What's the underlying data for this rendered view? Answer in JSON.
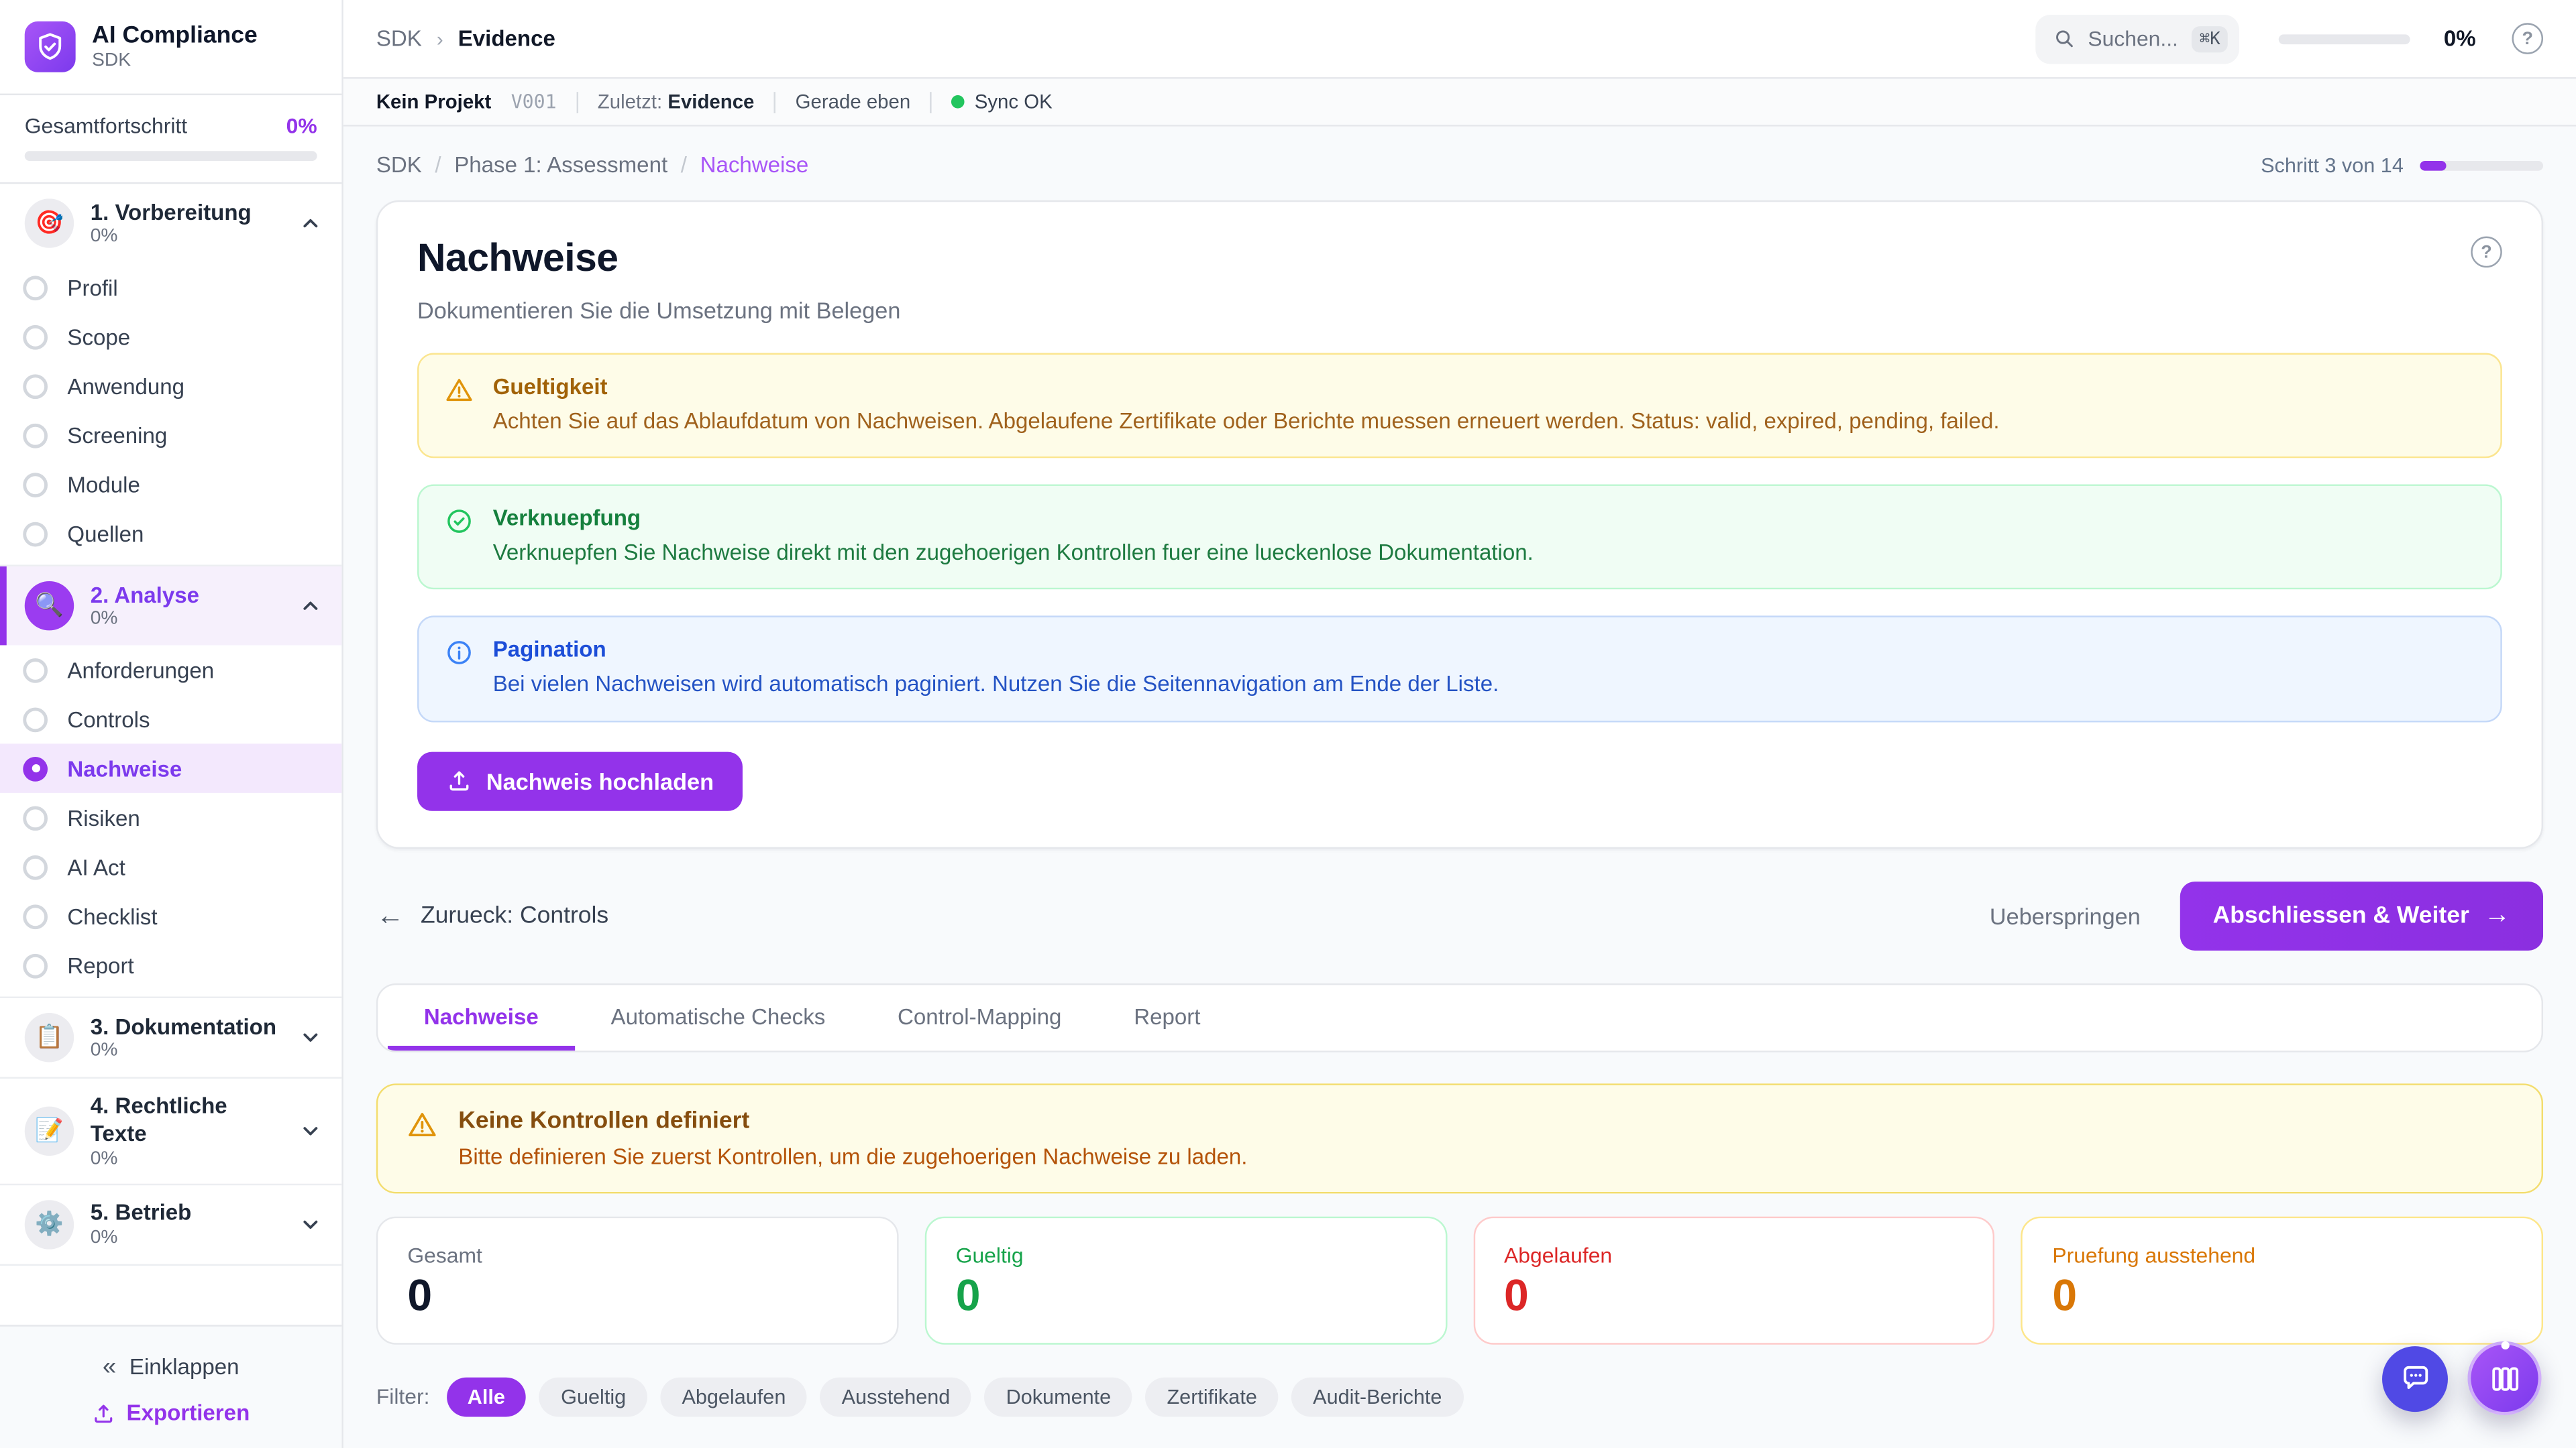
{
  "app": {
    "name": "AI Compliance",
    "subtitle": "SDK"
  },
  "sidebar": {
    "overall": {
      "label": "Gesamtfortschritt",
      "percent": "0%",
      "progress": 0
    },
    "sections": [
      {
        "title": "1. Vorbereitung",
        "percent": "0%",
        "icon": "🎯",
        "expanded": true,
        "active": false,
        "items": [
          {
            "label": "Profil"
          },
          {
            "label": "Scope"
          },
          {
            "label": "Anwendung"
          },
          {
            "label": "Screening"
          },
          {
            "label": "Module"
          },
          {
            "label": "Quellen"
          }
        ]
      },
      {
        "title": "2. Analyse",
        "percent": "0%",
        "icon": "🔍",
        "expanded": true,
        "active": true,
        "items": [
          {
            "label": "Anforderungen"
          },
          {
            "label": "Controls"
          },
          {
            "label": "Nachweise",
            "active": true
          },
          {
            "label": "Risiken"
          },
          {
            "label": "AI Act"
          },
          {
            "label": "Checklist"
          },
          {
            "label": "Report"
          }
        ]
      },
      {
        "title": "3. Dokumentation",
        "percent": "0%",
        "icon": "📋",
        "expanded": false,
        "active": false,
        "items": []
      },
      {
        "title": "4. Rechtliche Texte",
        "percent": "0%",
        "icon": "📝",
        "expanded": false,
        "active": false,
        "items": []
      },
      {
        "title": "5. Betrieb",
        "percent": "0%",
        "icon": "⚙️",
        "expanded": false,
        "active": false,
        "items": []
      }
    ],
    "collapse_label": "Einklappen",
    "export_label": "Exportieren"
  },
  "topbar": {
    "breadcrumb_root": "SDK",
    "breadcrumb_current": "Evidence",
    "search_placeholder": "Suchen...",
    "search_kbd": "⌘K",
    "progress_percent": "0%",
    "progress": 0
  },
  "statusbar": {
    "project": "Kein Projekt",
    "version": "V001",
    "last_label": "Zuletzt:",
    "last_value": "Evidence",
    "time": "Gerade eben",
    "sync": "Sync OK"
  },
  "page": {
    "breadcrumb": [
      {
        "label": "SDK"
      },
      {
        "label": "Phase 1: Assessment"
      },
      {
        "label": "Nachweise"
      }
    ],
    "step_label": "Schritt 3 von 14",
    "step_progress": 21,
    "title": "Nachweise",
    "subtitle": "Dokumentieren Sie die Umsetzung mit Belegen",
    "alerts": [
      {
        "type": "warning",
        "title": "Gueltigkeit",
        "text": "Achten Sie auf das Ablaufdatum von Nachweisen. Abgelaufene Zertifikate oder Berichte muessen erneuert werden. Status: valid, expired, pending, failed."
      },
      {
        "type": "success",
        "title": "Verknuepfung",
        "text": "Verknuepfen Sie Nachweise direkt mit den zugehoerigen Kontrollen fuer eine lueckenlose Dokumentation."
      },
      {
        "type": "info",
        "title": "Pagination",
        "text": "Bei vielen Nachweisen wird automatisch paginiert. Nutzen Sie die Seitennavigation am Ende der Liste."
      }
    ],
    "upload_button": "Nachweis hochladen",
    "back_link": "Zurueck: Controls",
    "skip_button": "Ueberspringen",
    "next_button": "Abschliessen & Weiter"
  },
  "tabs": {
    "items": [
      "Nachweise",
      "Automatische Checks",
      "Control-Mapping",
      "Report"
    ],
    "active": "Nachweise"
  },
  "empty_warning": {
    "title": "Keine Kontrollen definiert",
    "text": "Bitte definieren Sie zuerst Kontrollen, um die zugehoerigen Nachweise zu laden."
  },
  "stats": [
    {
      "label": "Gesamt",
      "value": "0",
      "color": "default"
    },
    {
      "label": "Gueltig",
      "value": "0",
      "color": "green"
    },
    {
      "label": "Abgelaufen",
      "value": "0",
      "color": "red"
    },
    {
      "label": "Pruefung ausstehend",
      "value": "0",
      "color": "amber"
    }
  ],
  "filters": {
    "label": "Filter:",
    "chips": [
      "Alle",
      "Gueltig",
      "Abgelaufen",
      "Ausstehend",
      "Dokumente",
      "Zertifikate",
      "Audit-Berichte"
    ],
    "active": "Alle"
  },
  "colors": {
    "primary": "#9333ea",
    "success": "#16a34a",
    "danger": "#dc2626",
    "warning": "#d97706",
    "sync_ok": "#22c55e"
  }
}
